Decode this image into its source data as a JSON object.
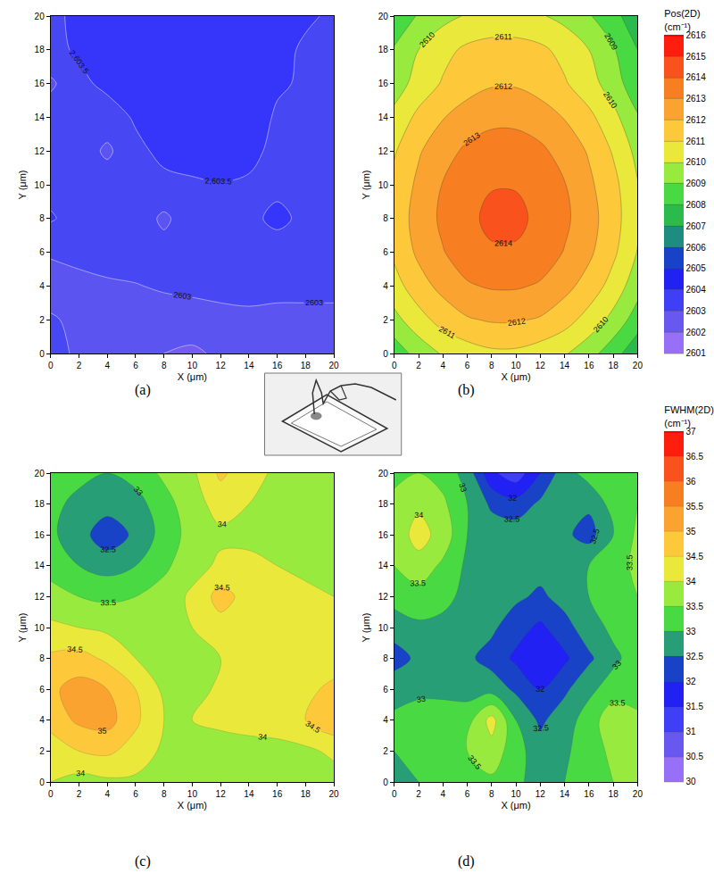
{
  "chart_data": [
    {
      "type": "contour",
      "label": "(a)",
      "xlabel": "X (μm)",
      "ylabel": "Y (μm)",
      "x": [
        0,
        2,
        4,
        6,
        8,
        10,
        12,
        14,
        16,
        18,
        20
      ],
      "y": [
        0,
        2,
        4,
        6,
        8,
        10,
        12,
        14,
        16,
        18,
        20
      ],
      "xlim": [
        0,
        20
      ],
      "ylim": [
        0,
        20
      ],
      "xticks": [
        0,
        2,
        4,
        6,
        8,
        10,
        12,
        14,
        16,
        18,
        20
      ],
      "yticks": [
        0,
        2,
        4,
        6,
        8,
        10,
        12,
        14,
        16,
        18,
        20
      ],
      "grid": false,
      "contour_levels": [
        2601,
        2601.5,
        2602,
        2602.5,
        2603,
        2603.5,
        2604,
        2604.5,
        2605,
        2605.5,
        2606,
        2606.5,
        2607,
        2607.5,
        2608,
        2608.5,
        2609,
        2609.5,
        2610,
        2610.5,
        2611,
        2611.5,
        2612,
        2612.5,
        2613,
        2613.5,
        2614,
        2614.5,
        2615,
        2615.5,
        2616
      ],
      "z": [
        [
          2603.2,
          2602.9,
          2602.8,
          2602.7,
          2602.5,
          2602.4,
          2602.6,
          2602.8,
          2602.9,
          2602.9,
          2602.9
        ],
        [
          2603.05,
          2602.9,
          2602.9,
          2602.8,
          2602.8,
          2602.8,
          2602.9,
          2602.9,
          2602.9,
          2602.9,
          2602.9
        ],
        [
          2602.8,
          2602.9,
          2602.95,
          2602.98,
          2603.05,
          2603.1,
          2603.1,
          2603.15,
          2603.1,
          2603.1,
          2603.1
        ],
        [
          2603.05,
          2603.1,
          2603.15,
          2603.2,
          2603.2,
          2603.25,
          2603.3,
          2603.3,
          2603.3,
          2603.3,
          2603.3
        ],
        [
          2603.55,
          2603.3,
          2603.3,
          2603.3,
          2602.9,
          2603.3,
          2603.35,
          2603.4,
          2603.6,
          2603.4,
          2603.3
        ],
        [
          2603.35,
          2603.3,
          2603.3,
          2603.35,
          2603.4,
          2603.45,
          2603.48,
          2603.45,
          2603.4,
          2603.35,
          2603.3
        ],
        [
          2603.35,
          2603.3,
          2602.9,
          2603.4,
          2603.6,
          2603.65,
          2603.7,
          2603.6,
          2603.4,
          2603.35,
          2603.3
        ],
        [
          2603.3,
          2603.35,
          2603.3,
          2603.55,
          2603.7,
          2603.75,
          2603.75,
          2603.7,
          2603.45,
          2603.4,
          2603.35
        ],
        [
          2602.9,
          2603.4,
          2603.6,
          2603.7,
          2603.8,
          2603.8,
          2603.8,
          2603.75,
          2603.55,
          2603.45,
          2603.4
        ],
        [
          2603.4,
          2603.55,
          2603.7,
          2603.75,
          2603.8,
          2603.8,
          2603.8,
          2603.75,
          2603.6,
          2603.45,
          2603.45
        ],
        [
          2603.45,
          2603.55,
          2603.7,
          2603.75,
          2603.8,
          2603.8,
          2603.8,
          2603.75,
          2603.65,
          2603.55,
          2603.45
        ]
      ]
    },
    {
      "type": "contour",
      "label": "(b)",
      "xlabel": "X (μm)",
      "ylabel": "Y (μm)",
      "x": [
        0,
        2,
        4,
        6,
        8,
        10,
        12,
        14,
        16,
        18,
        20
      ],
      "y": [
        0,
        2,
        4,
        6,
        8,
        10,
        12,
        14,
        16,
        18,
        20
      ],
      "xlim": [
        0,
        20
      ],
      "ylim": [
        0,
        20
      ],
      "xticks": [
        0,
        2,
        4,
        6,
        8,
        10,
        12,
        14,
        16,
        18,
        20
      ],
      "yticks": [
        0,
        2,
        4,
        6,
        8,
        10,
        12,
        14,
        16,
        18,
        20
      ],
      "grid": false,
      "contour_levels": [
        2601,
        2602,
        2603,
        2604,
        2605,
        2606,
        2607,
        2608,
        2609,
        2610,
        2611,
        2612,
        2613,
        2614,
        2615,
        2616
      ],
      "z": [
        [
          2608.4,
          2609.4,
          2610.1,
          2610.5,
          2610.8,
          2610.8,
          2610.5,
          2610.1,
          2609.4,
          2608.4,
          2607.3
        ],
        [
          2609.7,
          2610.6,
          2611.4,
          2611.9,
          2612.1,
          2612.1,
          2611.9,
          2611.4,
          2610.6,
          2609.7,
          2608.5
        ],
        [
          2610.6,
          2611.6,
          2612.3,
          2612.9,
          2613.1,
          2613.1,
          2612.9,
          2612.3,
          2611.6,
          2610.6,
          2609.4
        ],
        [
          2611.2,
          2612.2,
          2612.95,
          2613.5,
          2613.9,
          2613.9,
          2613.5,
          2612.95,
          2612.2,
          2611.2,
          2609.95
        ],
        [
          2611.4,
          2612.4,
          2613.2,
          2613.8,
          2614.2,
          2614.2,
          2613.8,
          2613.2,
          2612.4,
          2611.4,
          2610.2
        ],
        [
          2611.3,
          2612.2,
          2613.05,
          2613.6,
          2613.95,
          2613.95,
          2613.6,
          2613.05,
          2612.2,
          2611.3,
          2610.05
        ],
        [
          2610.9,
          2611.9,
          2612.6,
          2613.2,
          2613.45,
          2613.45,
          2613.2,
          2612.6,
          2611.9,
          2610.9,
          2609.7
        ],
        [
          2610.3,
          2611.25,
          2611.95,
          2612.45,
          2612.75,
          2612.75,
          2612.45,
          2611.95,
          2611.25,
          2610.3,
          2609.1
        ],
        [
          2609.5,
          2610.4,
          2611.1,
          2611.6,
          2611.9,
          2611.9,
          2611.6,
          2611.1,
          2610.4,
          2609.5,
          2608.3
        ],
        [
          2609.1,
          2610.0,
          2610.7,
          2611.2,
          2611.4,
          2611.4,
          2611.2,
          2610.7,
          2610.0,
          2609.1,
          2608.0
        ],
        [
          2608.3,
          2609.1,
          2609.7,
          2610.1,
          2610.3,
          2610.3,
          2610.1,
          2609.7,
          2609.1,
          2608.3,
          2607.4
        ]
      ]
    },
    {
      "type": "contour",
      "label": "(c)",
      "xlabel": "X (μm)",
      "ylabel": "Y (μm)",
      "x": [
        0,
        2,
        4,
        6,
        8,
        10,
        12,
        14,
        16,
        18,
        20
      ],
      "y": [
        0,
        2,
        4,
        6,
        8,
        10,
        12,
        14,
        16,
        18,
        20
      ],
      "xlim": [
        0,
        20
      ],
      "ylim": [
        0,
        20
      ],
      "xticks": [
        0,
        2,
        4,
        6,
        8,
        10,
        12,
        14,
        16,
        18,
        20
      ],
      "yticks": [
        0,
        2,
        4,
        6,
        8,
        10,
        12,
        14,
        16,
        18,
        20
      ],
      "grid": false,
      "contour_levels": [
        30,
        30.5,
        31,
        31.5,
        32,
        32.5,
        33,
        33.5,
        34,
        34.5,
        35,
        35.5,
        36,
        36.5,
        37
      ],
      "z": [
        [
          34.0,
          33.8,
          33.9,
          33.9,
          33.8,
          33.7,
          33.7,
          33.7,
          33.7,
          33.7,
          33.8
        ],
        [
          34.2,
          34.5,
          34.6,
          34.3,
          33.9,
          33.8,
          33.8,
          33.8,
          33.8,
          33.9,
          34.1
        ],
        [
          34.7,
          35.1,
          35.2,
          34.6,
          34.0,
          34.0,
          34.1,
          34.2,
          34.3,
          34.5,
          34.9
        ],
        [
          34.9,
          35.2,
          35.0,
          34.5,
          33.9,
          33.8,
          34.1,
          34.2,
          34.3,
          34.4,
          34.6
        ],
        [
          34.6,
          34.7,
          34.4,
          34.0,
          33.7,
          33.8,
          34.0,
          34.2,
          34.3,
          34.3,
          34.3
        ],
        [
          34.1,
          34.0,
          33.9,
          33.7,
          33.6,
          34.0,
          34.3,
          34.3,
          34.3,
          34.2,
          34.1
        ],
        [
          33.7,
          33.5,
          33.4,
          33.5,
          33.7,
          34.1,
          34.7,
          34.3,
          34.2,
          34.1,
          34.0
        ],
        [
          33.3,
          33.0,
          32.8,
          33.0,
          33.4,
          33.8,
          34.1,
          34.1,
          34.0,
          33.9,
          33.9
        ],
        [
          33.1,
          32.7,
          32.2,
          32.6,
          33.2,
          33.7,
          33.9,
          33.9,
          33.8,
          33.7,
          33.8
        ],
        [
          33.2,
          32.8,
          32.7,
          32.8,
          33.3,
          33.8,
          34.2,
          34.0,
          33.8,
          33.7,
          33.8
        ],
        [
          33.4,
          33.2,
          33.0,
          33.2,
          33.6,
          33.9,
          34.6,
          34.2,
          33.9,
          33.8,
          33.8
        ]
      ]
    },
    {
      "type": "contour",
      "label": "(d)",
      "xlabel": "X (μm)",
      "ylabel": "Y (μm)",
      "x": [
        0,
        2,
        4,
        6,
        8,
        10,
        12,
        14,
        16,
        18,
        20
      ],
      "y": [
        0,
        2,
        4,
        6,
        8,
        10,
        12,
        14,
        16,
        18,
        20
      ],
      "xlim": [
        0,
        20
      ],
      "ylim": [
        0,
        20
      ],
      "xticks": [
        0,
        2,
        4,
        6,
        8,
        10,
        12,
        14,
        16,
        18,
        20
      ],
      "yticks": [
        0,
        2,
        4,
        6,
        8,
        10,
        12,
        14,
        16,
        18,
        20
      ],
      "grid": false,
      "contour_levels": [
        30,
        30.5,
        31,
        31.5,
        32,
        32.5,
        33,
        33.5,
        34,
        34.5,
        35,
        35.5,
        36,
        36.5,
        37
      ],
      "z": [
        [
          32.9,
          33.0,
          33.2,
          33.4,
          33.4,
          33.1,
          32.8,
          33.0,
          33.3,
          33.5,
          33.6
        ],
        [
          33.0,
          33.1,
          33.3,
          33.5,
          33.8,
          33.2,
          32.7,
          32.9,
          33.3,
          33.6,
          33.6
        ],
        [
          33.1,
          33.2,
          33.2,
          33.3,
          34.2,
          33.0,
          32.4,
          32.8,
          33.2,
          33.9,
          33.6
        ],
        [
          32.8,
          32.9,
          32.9,
          32.8,
          32.8,
          32.4,
          32.0,
          32.4,
          32.9,
          33.2,
          33.3
        ],
        [
          32.3,
          32.6,
          32.8,
          32.6,
          32.3,
          31.9,
          31.6,
          31.9,
          32.4,
          32.9,
          33.2
        ],
        [
          32.7,
          32.9,
          32.9,
          32.8,
          32.6,
          32.2,
          31.9,
          32.3,
          32.8,
          33.1,
          33.3
        ],
        [
          33.2,
          33.3,
          33.1,
          32.9,
          32.8,
          32.6,
          32.4,
          32.7,
          33.0,
          33.3,
          33.5
        ],
        [
          33.5,
          33.8,
          33.4,
          32.9,
          32.8,
          32.8,
          32.7,
          32.8,
          33.0,
          33.3,
          33.6
        ],
        [
          33.7,
          34.2,
          33.8,
          33.0,
          32.8,
          32.8,
          32.9,
          32.6,
          32.3,
          33.0,
          33.6
        ],
        [
          33.6,
          33.9,
          33.6,
          33.0,
          32.4,
          32.2,
          32.6,
          33.0,
          32.6,
          33.2,
          33.5
        ],
        [
          33.4,
          33.5,
          33.3,
          32.8,
          31.6,
          31.2,
          32.0,
          32.8,
          33.2,
          33.4,
          33.5
        ]
      ]
    }
  ],
  "color_scales": [
    {
      "title": "Pos(2D)",
      "unit": "(cm⁻¹)",
      "charts": [
        "(a)",
        "(b)"
      ],
      "range": [
        2601,
        2616
      ],
      "ticks": [
        2601,
        2602,
        2603,
        2604,
        2605,
        2606,
        2607,
        2608,
        2609,
        2610,
        2611,
        2612,
        2613,
        2614,
        2615,
        2616
      ],
      "colors": [
        "#b080ff",
        "#8060f0",
        "#5050f0",
        "#2d2dff",
        "#1515e6",
        "#1a70a8",
        "#22aa55",
        "#33cc44",
        "#5ee640",
        "#d2f03c",
        "#ffdf3a",
        "#fbb23c",
        "#f89423",
        "#f56a1e",
        "#ff3a1a",
        "#ff0000"
      ]
    },
    {
      "title": "FWHM(2D)",
      "unit": "(cm⁻¹)",
      "charts": [
        "(c)",
        "(d)"
      ],
      "range": [
        30,
        37
      ],
      "ticks": [
        30,
        30.5,
        31,
        31.5,
        32,
        32.5,
        33,
        33.5,
        34,
        34.5,
        35,
        35.5,
        36,
        36.5,
        37
      ],
      "colors": [
        "#b080ff",
        "#8060f0",
        "#5050f0",
        "#2d2dff",
        "#1515e6",
        "#1a70a8",
        "#33cc44",
        "#5ee640",
        "#d2f03c",
        "#ffdf3a",
        "#fbb23c",
        "#f89423",
        "#f56a1e",
        "#ff3a1a",
        "#ff0000"
      ]
    }
  ]
}
